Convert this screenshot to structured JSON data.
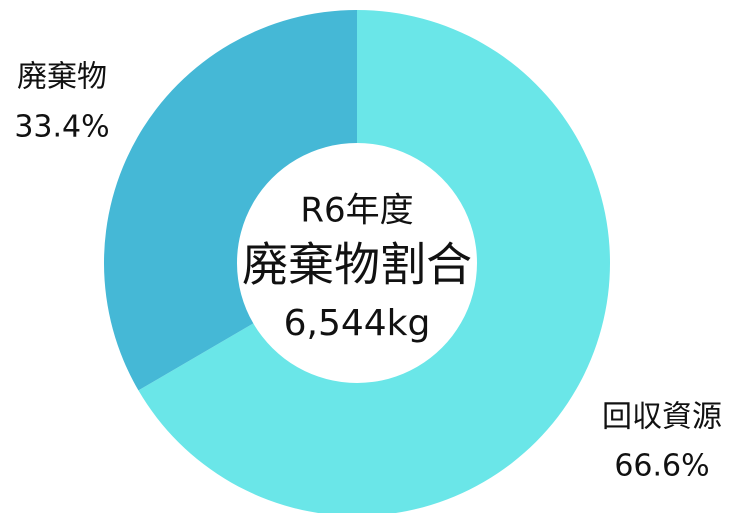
{
  "chart_data": {
    "type": "donut",
    "subtitle": "R6年度",
    "title": "廃棄物割合",
    "annotation": "6,544kg",
    "categories": [
      "回収資源",
      "廃棄物"
    ],
    "values": [
      66.6,
      33.4
    ],
    "value_labels": [
      "66.6%",
      "33.4%"
    ],
    "colors": [
      "#6ae6e8",
      "#45b8d6"
    ]
  }
}
